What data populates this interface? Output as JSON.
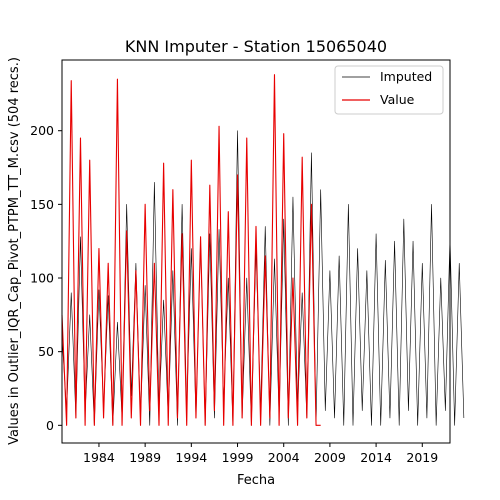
{
  "chart_data": {
    "type": "line",
    "title": "KNN Imputer - Station 15065040",
    "xlabel": "Fecha",
    "ylabel": "Values in Outlier_IQR_Cap_Pivot_PTPM_TT_M.csv (504 recs.)",
    "xlim": [
      1980.0,
      2022.0
    ],
    "ylim": [
      -12,
      248
    ],
    "x_ticks": [
      1984,
      1989,
      1994,
      1999,
      2004,
      2009,
      2014,
      2019
    ],
    "y_ticks": [
      0,
      50,
      100,
      150,
      200
    ],
    "grid": false,
    "legend_position": "top-right",
    "series": [
      {
        "name": "Imputed",
        "color": "#000000",
        "x_start": 1980.0,
        "x_step_months": 6,
        "values": [
          60,
          10,
          90,
          5,
          128,
          8,
          75,
          0,
          92,
          10,
          88,
          0,
          70,
          5,
          150,
          20,
          110,
          5,
          95,
          0,
          165,
          10,
          85,
          5,
          105,
          0,
          150,
          10,
          120,
          5,
          125,
          0,
          130,
          5,
          133,
          15,
          100,
          0,
          200,
          5,
          100,
          0,
          120,
          10,
          135,
          0,
          113,
          5,
          140,
          0,
          155,
          10,
          90,
          5,
          185,
          0,
          160,
          10,
          105,
          5,
          115,
          0,
          150,
          0,
          120,
          10,
          105,
          0,
          130,
          0,
          112,
          5,
          125,
          0,
          140,
          10,
          125,
          0,
          110,
          5,
          150,
          0,
          100,
          10,
          128,
          0,
          110,
          5
        ]
      },
      {
        "name": "Value",
        "color": "#e80000",
        "x_start": 1980.0,
        "x_step_months": 6,
        "values": [
          75,
          0,
          234,
          5,
          195,
          0,
          180,
          0,
          120,
          5,
          110,
          0,
          235,
          0,
          132,
          5,
          105,
          0,
          150,
          10,
          110,
          0,
          178,
          0,
          160,
          5,
          130,
          0,
          180,
          5,
          128,
          0,
          163,
          10,
          203,
          0,
          145,
          0,
          170,
          5,
          195,
          0,
          135,
          0,
          115,
          5,
          238,
          0,
          198,
          5,
          100,
          0,
          182,
          5,
          150,
          0,
          0
        ]
      }
    ]
  }
}
